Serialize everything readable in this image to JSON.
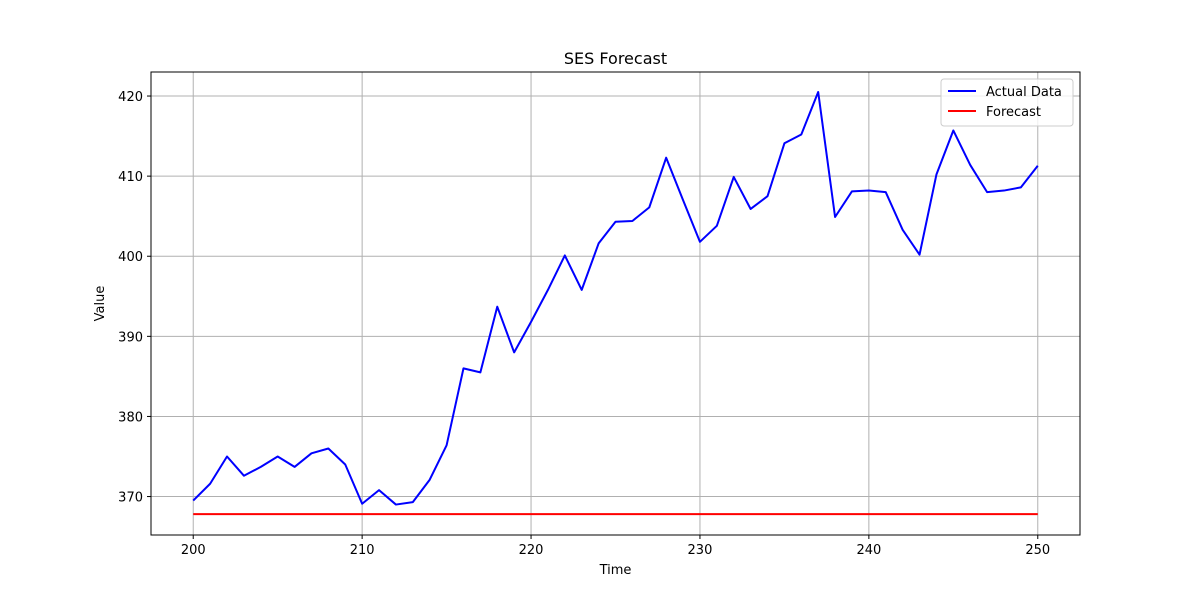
{
  "chart_data": {
    "type": "line",
    "title": "SES Forecast",
    "xlabel": "Time",
    "ylabel": "Value",
    "xlim": [
      197.5,
      252.5
    ],
    "ylim": [
      365.2,
      423.0
    ],
    "xticks": [
      200,
      210,
      220,
      230,
      240,
      250
    ],
    "yticks": [
      370,
      380,
      390,
      400,
      410,
      420
    ],
    "grid": true,
    "legend_position": "top-right",
    "series": [
      {
        "name": "Actual Data",
        "color": "#0000ff",
        "x": [
          200,
          201,
          202,
          203,
          204,
          205,
          206,
          207,
          208,
          209,
          210,
          211,
          212,
          213,
          214,
          215,
          216,
          217,
          218,
          219,
          220,
          221,
          222,
          223,
          224,
          225,
          226,
          227,
          228,
          229,
          230,
          231,
          232,
          233,
          234,
          235,
          236,
          237,
          238,
          239,
          240,
          241,
          242,
          243,
          244,
          245,
          246,
          247,
          248,
          249,
          250
        ],
        "values": [
          369.5,
          371.6,
          375.0,
          372.6,
          373.7,
          375.0,
          373.7,
          375.4,
          376.0,
          374.0,
          369.1,
          370.8,
          369.0,
          369.3,
          372.1,
          376.4,
          386.0,
          385.5,
          393.7,
          388.0,
          391.8,
          395.8,
          400.1,
          395.8,
          401.6,
          404.3,
          404.4,
          406.1,
          412.3,
          407.0,
          401.8,
          403.8,
          409.9,
          405.9,
          407.5,
          414.1,
          415.2,
          420.5,
          404.9,
          408.1,
          408.2,
          408.0,
          403.3,
          400.2,
          410.2,
          415.7,
          411.4,
          408.0,
          408.2,
          408.6,
          411.3
        ]
      },
      {
        "name": "Forecast",
        "color": "#ff0000",
        "x": [
          200,
          250
        ],
        "values": [
          367.8,
          367.8
        ]
      }
    ]
  }
}
